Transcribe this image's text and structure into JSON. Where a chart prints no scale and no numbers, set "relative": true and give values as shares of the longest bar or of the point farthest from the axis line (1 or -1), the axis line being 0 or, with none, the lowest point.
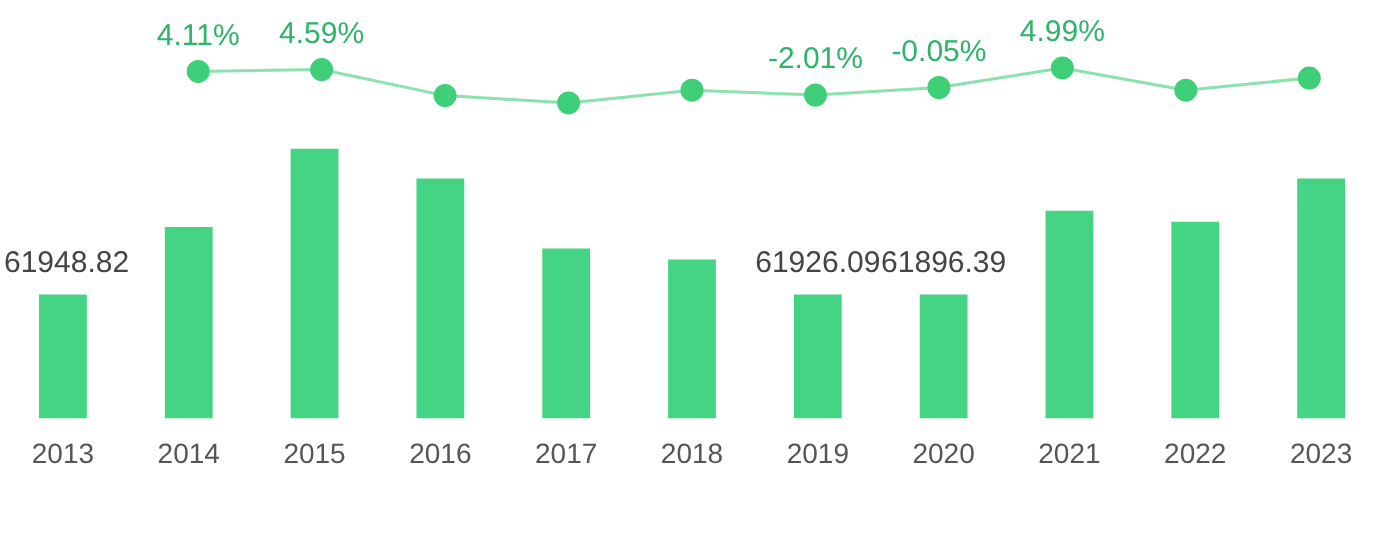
{
  "chart_data": [
    {
      "type": "line",
      "categories": [
        "2013",
        "2014",
        "2015",
        "2016",
        "2017",
        "2018",
        "2019",
        "2020",
        "2021",
        "2022",
        "2023"
      ],
      "tick_labels": false,
      "grid": false,
      "legend": false,
      "marker": "circle",
      "series": [
        {
          "color": "#3ecf78",
          "values": [
            null,
            4.11,
            4.59,
            -2.14,
            -4.05,
            -0.74,
            -2.01,
            -0.05,
            4.99,
            -0.74,
            2.4
          ],
          "value_labels": [
            null,
            "4.11%",
            "4.59%",
            null,
            null,
            null,
            "-2.01%",
            "-0.05%",
            "4.99%",
            null,
            null
          ]
        }
      ]
    },
    {
      "type": "bar",
      "relative": true,
      "categories": [
        "2013",
        "2014",
        "2015",
        "2016",
        "2017",
        "2018",
        "2019",
        "2020",
        "2021",
        "2022",
        "2023"
      ],
      "grid": false,
      "legend": false,
      "series": [
        {
          "color": "#45d483",
          "values": [
            0.46,
            0.71,
            1,
            0.89,
            0.63,
            0.59,
            0.46,
            0.46,
            0.77,
            0.73,
            0.89
          ]
        }
      ],
      "annotations": [
        {
          "text": "61948.82",
          "x": "2013",
          "y": 0.46
        },
        {
          "text": "61926.09",
          "x": "2019",
          "y": 0.46
        },
        {
          "text": "61896.39",
          "x": "2020",
          "y": 0.46
        }
      ]
    }
  ]
}
